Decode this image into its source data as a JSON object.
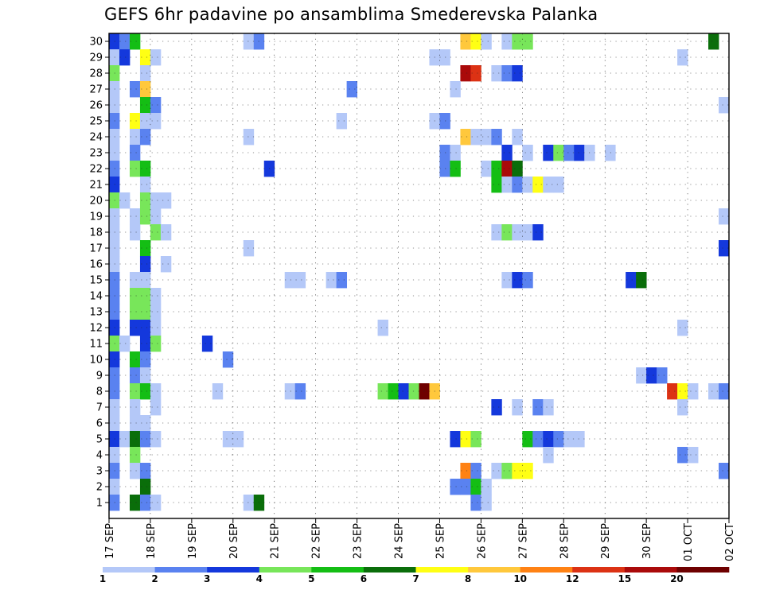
{
  "chart_data": {
    "type": "heatmap",
    "title": "GEFS 6hr padavine po ansamblima Smederevska Palanka",
    "y_members": [
      1,
      2,
      3,
      4,
      5,
      6,
      7,
      8,
      9,
      10,
      11,
      12,
      13,
      14,
      15,
      16,
      17,
      18,
      19,
      20,
      21,
      22,
      23,
      24,
      25,
      26,
      27,
      28,
      29,
      30
    ],
    "x_ticks": [
      "17 SEP",
      "18 SEP",
      "19 SEP",
      "20 SEP",
      "21 SEP",
      "22 SEP",
      "23 SEP",
      "24 SEP",
      "25 SEP",
      "26 SEP",
      "27 SEP",
      "28 SEP",
      "29 SEP",
      "30 SEP",
      "01 OCT",
      "02 OCT"
    ],
    "x_range": [
      0,
      15
    ],
    "step_hours": 6,
    "grid": true,
    "colorbar": {
      "levels": [
        "1",
        "2",
        "3",
        "4",
        "5",
        "6",
        "7",
        "8",
        "10",
        "12",
        "15",
        "20"
      ],
      "colors": [
        "#b4c8f8",
        "#5a82f0",
        "#1438dc",
        "#78e65a",
        "#14be14",
        "#0a6e0a",
        "#ffff14",
        "#ffc83c",
        "#ff8214",
        "#dc3214",
        "#aa0a0a",
        "#6e0000"
      ],
      "placement": "bottom"
    },
    "cells": [
      {
        "m": 30,
        "t": 0,
        "c": 2
      },
      {
        "m": 30,
        "t": 1,
        "c": 1
      },
      {
        "m": 30,
        "t": 2,
        "c": 4
      },
      {
        "m": 30,
        "t": 13,
        "c": 0
      },
      {
        "m": 30,
        "t": 14,
        "c": 1
      },
      {
        "m": 30,
        "t": 34,
        "c": 7
      },
      {
        "m": 30,
        "t": 35,
        "c": 6
      },
      {
        "m": 30,
        "t": 36,
        "c": 0
      },
      {
        "m": 30,
        "t": 38,
        "c": 0
      },
      {
        "m": 30,
        "t": 39,
        "c": 3
      },
      {
        "m": 30,
        "t": 40,
        "c": 3
      },
      {
        "m": 30,
        "t": 58,
        "c": 5
      },
      {
        "m": 29,
        "t": 0,
        "c": 0
      },
      {
        "m": 29,
        "t": 1,
        "c": 2
      },
      {
        "m": 29,
        "t": 3,
        "c": 6
      },
      {
        "m": 29,
        "t": 4,
        "c": 0
      },
      {
        "m": 29,
        "t": 31,
        "c": 0
      },
      {
        "m": 29,
        "t": 32,
        "c": 0
      },
      {
        "m": 29,
        "t": 55,
        "c": 0
      },
      {
        "m": 28,
        "t": 0,
        "c": 3
      },
      {
        "m": 28,
        "t": 3,
        "c": 0
      },
      {
        "m": 28,
        "t": 34,
        "c": 10
      },
      {
        "m": 28,
        "t": 35,
        "c": 9
      },
      {
        "m": 28,
        "t": 37,
        "c": 0
      },
      {
        "m": 28,
        "t": 38,
        "c": 1
      },
      {
        "m": 28,
        "t": 39,
        "c": 2
      },
      {
        "m": 27,
        "t": 0,
        "c": 0
      },
      {
        "m": 27,
        "t": 2,
        "c": 1
      },
      {
        "m": 27,
        "t": 3,
        "c": 7
      },
      {
        "m": 27,
        "t": 23,
        "c": 1
      },
      {
        "m": 27,
        "t": 33,
        "c": 0
      },
      {
        "m": 26,
        "t": 0,
        "c": 0
      },
      {
        "m": 26,
        "t": 3,
        "c": 4
      },
      {
        "m": 26,
        "t": 4,
        "c": 1
      },
      {
        "m": 26,
        "t": 59,
        "c": 0
      },
      {
        "m": 25,
        "t": 0,
        "c": 1
      },
      {
        "m": 25,
        "t": 2,
        "c": 6
      },
      {
        "m": 25,
        "t": 3,
        "c": 0
      },
      {
        "m": 25,
        "t": 4,
        "c": 0
      },
      {
        "m": 25,
        "t": 22,
        "c": 0
      },
      {
        "m": 25,
        "t": 31,
        "c": 0
      },
      {
        "m": 25,
        "t": 32,
        "c": 1
      },
      {
        "m": 24,
        "t": 0,
        "c": 0
      },
      {
        "m": 24,
        "t": 2,
        "c": 0
      },
      {
        "m": 24,
        "t": 3,
        "c": 1
      },
      {
        "m": 24,
        "t": 13,
        "c": 0
      },
      {
        "m": 24,
        "t": 34,
        "c": 7
      },
      {
        "m": 24,
        "t": 35,
        "c": 0
      },
      {
        "m": 24,
        "t": 36,
        "c": 0
      },
      {
        "m": 24,
        "t": 37,
        "c": 1
      },
      {
        "m": 24,
        "t": 39,
        "c": 0
      },
      {
        "m": 23,
        "t": 0,
        "c": 0
      },
      {
        "m": 23,
        "t": 2,
        "c": 1
      },
      {
        "m": 23,
        "t": 32,
        "c": 1
      },
      {
        "m": 23,
        "t": 33,
        "c": 0
      },
      {
        "m": 23,
        "t": 38,
        "c": 2
      },
      {
        "m": 23,
        "t": 40,
        "c": 0
      },
      {
        "m": 23,
        "t": 42,
        "c": 2
      },
      {
        "m": 23,
        "t": 43,
        "c": 3
      },
      {
        "m": 23,
        "t": 44,
        "c": 1
      },
      {
        "m": 23,
        "t": 45,
        "c": 2
      },
      {
        "m": 23,
        "t": 46,
        "c": 0
      },
      {
        "m": 23,
        "t": 48,
        "c": 0
      },
      {
        "m": 22,
        "t": 0,
        "c": 1
      },
      {
        "m": 22,
        "t": 2,
        "c": 3
      },
      {
        "m": 22,
        "t": 3,
        "c": 4
      },
      {
        "m": 22,
        "t": 15,
        "c": 2
      },
      {
        "m": 22,
        "t": 32,
        "c": 1
      },
      {
        "m": 22,
        "t": 33,
        "c": 4
      },
      {
        "m": 22,
        "t": 36,
        "c": 0
      },
      {
        "m": 22,
        "t": 37,
        "c": 4
      },
      {
        "m": 22,
        "t": 38,
        "c": 10
      },
      {
        "m": 22,
        "t": 39,
        "c": 5
      },
      {
        "m": 21,
        "t": 0,
        "c": 2
      },
      {
        "m": 21,
        "t": 3,
        "c": 0
      },
      {
        "m": 21,
        "t": 37,
        "c": 4
      },
      {
        "m": 21,
        "t": 38,
        "c": 0
      },
      {
        "m": 21,
        "t": 39,
        "c": 1
      },
      {
        "m": 21,
        "t": 40,
        "c": 0
      },
      {
        "m": 21,
        "t": 41,
        "c": 6
      },
      {
        "m": 21,
        "t": 42,
        "c": 0
      },
      {
        "m": 21,
        "t": 43,
        "c": 0
      },
      {
        "m": 20,
        "t": 0,
        "c": 3
      },
      {
        "m": 20,
        "t": 1,
        "c": 0
      },
      {
        "m": 20,
        "t": 3,
        "c": 3
      },
      {
        "m": 20,
        "t": 4,
        "c": 0
      },
      {
        "m": 20,
        "t": 5,
        "c": 0
      },
      {
        "m": 19,
        "t": 0,
        "c": 0
      },
      {
        "m": 19,
        "t": 2,
        "c": 0
      },
      {
        "m": 19,
        "t": 3,
        "c": 3
      },
      {
        "m": 19,
        "t": 4,
        "c": 0
      },
      {
        "m": 19,
        "t": 59,
        "c": 0
      },
      {
        "m": 18,
        "t": 0,
        "c": 0
      },
      {
        "m": 18,
        "t": 2,
        "c": 0
      },
      {
        "m": 18,
        "t": 4,
        "c": 3
      },
      {
        "m": 18,
        "t": 5,
        "c": 0
      },
      {
        "m": 18,
        "t": 37,
        "c": 0
      },
      {
        "m": 18,
        "t": 38,
        "c": 3
      },
      {
        "m": 18,
        "t": 39,
        "c": 0
      },
      {
        "m": 18,
        "t": 40,
        "c": 0
      },
      {
        "m": 18,
        "t": 41,
        "c": 2
      },
      {
        "m": 17,
        "t": 0,
        "c": 0
      },
      {
        "m": 17,
        "t": 3,
        "c": 4
      },
      {
        "m": 17,
        "t": 13,
        "c": 0
      },
      {
        "m": 17,
        "t": 59,
        "c": 2
      },
      {
        "m": 16,
        "t": 0,
        "c": 0
      },
      {
        "m": 16,
        "t": 3,
        "c": 2
      },
      {
        "m": 16,
        "t": 5,
        "c": 0
      },
      {
        "m": 15,
        "t": 0,
        "c": 1
      },
      {
        "m": 15,
        "t": 2,
        "c": 0
      },
      {
        "m": 15,
        "t": 3,
        "c": 0
      },
      {
        "m": 15,
        "t": 17,
        "c": 0
      },
      {
        "m": 15,
        "t": 18,
        "c": 0
      },
      {
        "m": 15,
        "t": 21,
        "c": 0
      },
      {
        "m": 15,
        "t": 22,
        "c": 1
      },
      {
        "m": 15,
        "t": 38,
        "c": 0
      },
      {
        "m": 15,
        "t": 39,
        "c": 2
      },
      {
        "m": 15,
        "t": 40,
        "c": 1
      },
      {
        "m": 15,
        "t": 50,
        "c": 2
      },
      {
        "m": 15,
        "t": 51,
        "c": 5
      },
      {
        "m": 14,
        "t": 0,
        "c": 1
      },
      {
        "m": 14,
        "t": 2,
        "c": 3
      },
      {
        "m": 14,
        "t": 3,
        "c": 3
      },
      {
        "m": 14,
        "t": 4,
        "c": 0
      },
      {
        "m": 13,
        "t": 0,
        "c": 1
      },
      {
        "m": 13,
        "t": 2,
        "c": 3
      },
      {
        "m": 13,
        "t": 3,
        "c": 3
      },
      {
        "m": 13,
        "t": 4,
        "c": 0
      },
      {
        "m": 12,
        "t": 0,
        "c": 2
      },
      {
        "m": 12,
        "t": 2,
        "c": 2
      },
      {
        "m": 12,
        "t": 3,
        "c": 2
      },
      {
        "m": 12,
        "t": 4,
        "c": 0
      },
      {
        "m": 12,
        "t": 26,
        "c": 0
      },
      {
        "m": 12,
        "t": 55,
        "c": 0
      },
      {
        "m": 11,
        "t": 0,
        "c": 3
      },
      {
        "m": 11,
        "t": 1,
        "c": 0
      },
      {
        "m": 11,
        "t": 3,
        "c": 2
      },
      {
        "m": 11,
        "t": 4,
        "c": 3
      },
      {
        "m": 11,
        "t": 9,
        "c": 2
      },
      {
        "m": 10,
        "t": 0,
        "c": 2
      },
      {
        "m": 10,
        "t": 2,
        "c": 4
      },
      {
        "m": 10,
        "t": 3,
        "c": 1
      },
      {
        "m": 10,
        "t": 11,
        "c": 1
      },
      {
        "m": 9,
        "t": 0,
        "c": 1
      },
      {
        "m": 9,
        "t": 2,
        "c": 1
      },
      {
        "m": 9,
        "t": 3,
        "c": 0
      },
      {
        "m": 9,
        "t": 51,
        "c": 0
      },
      {
        "m": 9,
        "t": 52,
        "c": 2
      },
      {
        "m": 9,
        "t": 53,
        "c": 1
      },
      {
        "m": 8,
        "t": 0,
        "c": 1
      },
      {
        "m": 8,
        "t": 2,
        "c": 3
      },
      {
        "m": 8,
        "t": 3,
        "c": 4
      },
      {
        "m": 8,
        "t": 4,
        "c": 0
      },
      {
        "m": 8,
        "t": 10,
        "c": 0
      },
      {
        "m": 8,
        "t": 17,
        "c": 0
      },
      {
        "m": 8,
        "t": 18,
        "c": 1
      },
      {
        "m": 8,
        "t": 26,
        "c": 3
      },
      {
        "m": 8,
        "t": 27,
        "c": 4
      },
      {
        "m": 8,
        "t": 28,
        "c": 2
      },
      {
        "m": 8,
        "t": 29,
        "c": 3
      },
      {
        "m": 8,
        "t": 30,
        "c": 11
      },
      {
        "m": 8,
        "t": 31,
        "c": 7
      },
      {
        "m": 8,
        "t": 54,
        "c": 9
      },
      {
        "m": 8,
        "t": 55,
        "c": 6
      },
      {
        "m": 8,
        "t": 56,
        "c": 0
      },
      {
        "m": 8,
        "t": 58,
        "c": 0
      },
      {
        "m": 8,
        "t": 59,
        "c": 1
      },
      {
        "m": 7,
        "t": 0,
        "c": 0
      },
      {
        "m": 7,
        "t": 2,
        "c": 0
      },
      {
        "m": 7,
        "t": 4,
        "c": 0
      },
      {
        "m": 7,
        "t": 37,
        "c": 2
      },
      {
        "m": 7,
        "t": 39,
        "c": 0
      },
      {
        "m": 7,
        "t": 41,
        "c": 1
      },
      {
        "m": 7,
        "t": 42,
        "c": 0
      },
      {
        "m": 7,
        "t": 55,
        "c": 0
      },
      {
        "m": 6,
        "t": 0,
        "c": 0
      },
      {
        "m": 6,
        "t": 2,
        "c": 0
      },
      {
        "m": 6,
        "t": 3,
        "c": 0
      },
      {
        "m": 5,
        "t": 0,
        "c": 2
      },
      {
        "m": 5,
        "t": 1,
        "c": 0
      },
      {
        "m": 5,
        "t": 2,
        "c": 5
      },
      {
        "m": 5,
        "t": 3,
        "c": 1
      },
      {
        "m": 5,
        "t": 4,
        "c": 0
      },
      {
        "m": 5,
        "t": 11,
        "c": 0
      },
      {
        "m": 5,
        "t": 12,
        "c": 0
      },
      {
        "m": 5,
        "t": 33,
        "c": 2
      },
      {
        "m": 5,
        "t": 34,
        "c": 6
      },
      {
        "m": 5,
        "t": 35,
        "c": 3
      },
      {
        "m": 5,
        "t": 40,
        "c": 4
      },
      {
        "m": 5,
        "t": 41,
        "c": 1
      },
      {
        "m": 5,
        "t": 42,
        "c": 2
      },
      {
        "m": 5,
        "t": 43,
        "c": 1
      },
      {
        "m": 5,
        "t": 44,
        "c": 0
      },
      {
        "m": 5,
        "t": 45,
        "c": 0
      },
      {
        "m": 4,
        "t": 0,
        "c": 0
      },
      {
        "m": 4,
        "t": 2,
        "c": 3
      },
      {
        "m": 4,
        "t": 42,
        "c": 0
      },
      {
        "m": 4,
        "t": 55,
        "c": 1
      },
      {
        "m": 4,
        "t": 56,
        "c": 0
      },
      {
        "m": 3,
        "t": 0,
        "c": 1
      },
      {
        "m": 3,
        "t": 2,
        "c": 0
      },
      {
        "m": 3,
        "t": 3,
        "c": 1
      },
      {
        "m": 3,
        "t": 34,
        "c": 8
      },
      {
        "m": 3,
        "t": 35,
        "c": 1
      },
      {
        "m": 3,
        "t": 37,
        "c": 0
      },
      {
        "m": 3,
        "t": 38,
        "c": 3
      },
      {
        "m": 3,
        "t": 39,
        "c": 6
      },
      {
        "m": 3,
        "t": 40,
        "c": 6
      },
      {
        "m": 3,
        "t": 59,
        "c": 1
      },
      {
        "m": 2,
        "t": 0,
        "c": 0
      },
      {
        "m": 2,
        "t": 3,
        "c": 5
      },
      {
        "m": 2,
        "t": 33,
        "c": 1
      },
      {
        "m": 2,
        "t": 34,
        "c": 1
      },
      {
        "m": 2,
        "t": 35,
        "c": 4
      },
      {
        "m": 2,
        "t": 36,
        "c": 0
      },
      {
        "m": 1,
        "t": 0,
        "c": 1
      },
      {
        "m": 1,
        "t": 2,
        "c": 5
      },
      {
        "m": 1,
        "t": 3,
        "c": 1
      },
      {
        "m": 1,
        "t": 4,
        "c": 0
      },
      {
        "m": 1,
        "t": 13,
        "c": 0
      },
      {
        "m": 1,
        "t": 14,
        "c": 5
      },
      {
        "m": 1,
        "t": 35,
        "c": 1
      },
      {
        "m": 1,
        "t": 36,
        "c": 0
      }
    ]
  }
}
